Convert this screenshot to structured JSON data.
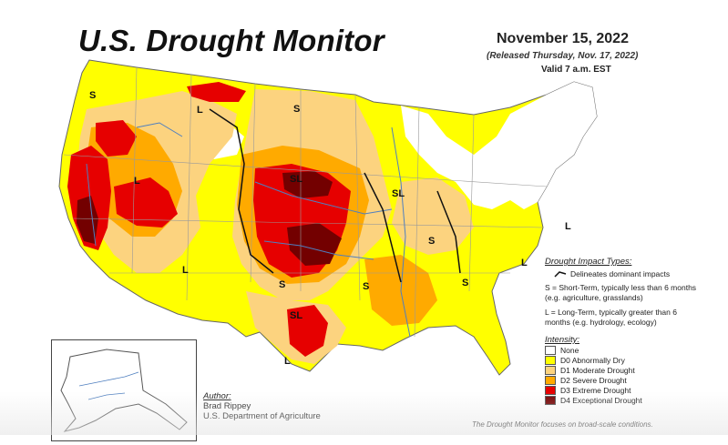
{
  "header": {
    "title": "U.S. Drought Monitor",
    "date": "November 15, 2022",
    "released": "(Released Thursday, Nov. 17, 2022)",
    "valid": "Valid 7 a.m. EST"
  },
  "map_labels": {
    "s_nw": "S",
    "l_mt": "L",
    "s_nd": "S",
    "l_nv": "L",
    "sl_ne": "SL",
    "sl_mo": "SL",
    "s_tn": "S",
    "l_nj": "L",
    "l_az": "L",
    "s_ok": "S",
    "s_ms": "S",
    "s_ga": "S",
    "l_nc": "L",
    "sl_tx": "SL",
    "l_tx": "L"
  },
  "legend": {
    "impact_title": "Drought Impact Types:",
    "impact_line": "Delineates dominant impacts",
    "s_note": "S = Short-Term, typically less than 6 months (e.g. agriculture, grasslands)",
    "l_note": "L = Long-Term, typically greater than 6 months (e.g. hydrology, ecology)",
    "intensity_title": "Intensity:",
    "categories": [
      {
        "label": "None",
        "color": "#ffffff"
      },
      {
        "label": "D0 Abnormally Dry",
        "color": "#ffff00"
      },
      {
        "label": "D1 Moderate Drought",
        "color": "#fcd37f"
      },
      {
        "label": "D2 Severe Drought",
        "color": "#ffaa00"
      },
      {
        "label": "D3 Extreme Drought",
        "color": "#e60000"
      },
      {
        "label": "D4 Exceptional Drought",
        "color": "#730000"
      }
    ]
  },
  "author": {
    "label": "Author:",
    "name": "Brad Rippey",
    "org": "U.S. Department of Agriculture"
  },
  "footnote": {
    "line1": "The Drought Monitor focuses on broad-scale conditions."
  }
}
